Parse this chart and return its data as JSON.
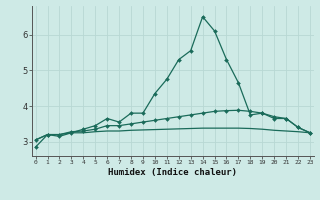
{
  "xlabel": "Humidex (Indice chaleur)",
  "x": [
    0,
    1,
    2,
    3,
    4,
    5,
    6,
    7,
    8,
    9,
    10,
    11,
    12,
    13,
    14,
    15,
    16,
    17,
    18,
    19,
    20,
    21,
    22,
    23
  ],
  "line1": [
    2.85,
    3.2,
    3.15,
    3.25,
    3.35,
    3.45,
    3.65,
    3.55,
    3.8,
    3.8,
    4.35,
    4.75,
    5.3,
    5.55,
    6.5,
    6.1,
    5.3,
    4.65,
    3.75,
    3.8,
    3.65,
    3.65,
    3.4,
    3.25
  ],
  "line2": [
    3.05,
    3.2,
    3.2,
    3.28,
    3.3,
    3.35,
    3.45,
    3.45,
    3.5,
    3.55,
    3.6,
    3.65,
    3.7,
    3.75,
    3.8,
    3.85,
    3.87,
    3.88,
    3.85,
    3.8,
    3.7,
    3.65,
    3.4,
    3.25
  ],
  "line3": [
    3.05,
    3.2,
    3.2,
    3.25,
    3.25,
    3.28,
    3.3,
    3.3,
    3.32,
    3.33,
    3.34,
    3.35,
    3.36,
    3.37,
    3.38,
    3.38,
    3.38,
    3.38,
    3.37,
    3.35,
    3.32,
    3.3,
    3.28,
    3.25
  ],
  "bg_color": "#ceeae6",
  "grid_color": "#b8d8d4",
  "line_color": "#1a6b5a",
  "ylim": [
    2.6,
    6.8
  ],
  "yticks": [
    3,
    4,
    5,
    6
  ],
  "xticks": [
    0,
    1,
    2,
    3,
    4,
    5,
    6,
    7,
    8,
    9,
    10,
    11,
    12,
    13,
    14,
    15,
    16,
    17,
    18,
    19,
    20,
    21,
    22,
    23
  ]
}
